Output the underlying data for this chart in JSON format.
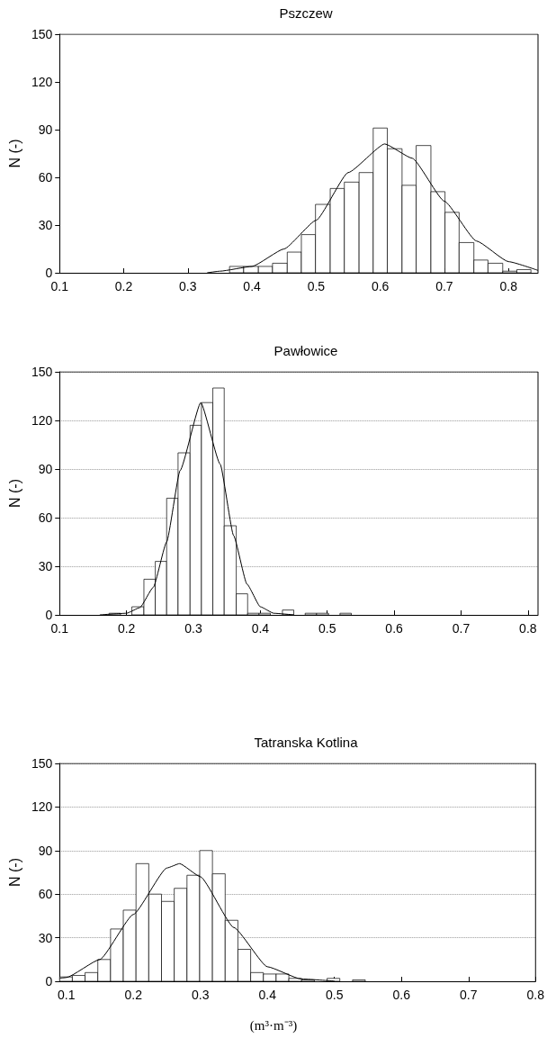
{
  "chart_data": [
    {
      "type": "histogram",
      "title": "Pszczew",
      "ylabel": "N (-)",
      "xlim": [
        0.1,
        0.846
      ],
      "xticks": [
        0.1,
        0.2,
        0.3,
        0.4,
        0.5,
        0.6,
        0.7,
        0.8
      ],
      "ylim": [
        0,
        150
      ],
      "yticks": [
        0,
        30,
        60,
        90,
        120,
        150
      ],
      "grid": false,
      "series": [
        {
          "type": "histogram",
          "color": "#ffffff",
          "bins": [
            0.365,
            0.387,
            0.41,
            0.432,
            0.455,
            0.477,
            0.499,
            0.522,
            0.544,
            0.567,
            0.589,
            0.611,
            0.634,
            0.656,
            0.679,
            0.701,
            0.723,
            0.746,
            0.768,
            0.791,
            0.813,
            0.835
          ],
          "values": [
            4,
            4,
            4,
            6,
            13,
            24,
            43,
            53,
            57,
            63,
            91,
            78,
            55,
            80,
            51,
            38,
            19,
            8,
            6,
            1,
            2
          ]
        },
        {
          "type": "line",
          "color": "#000000",
          "x": [
            0.33,
            0.35,
            0.4,
            0.45,
            0.5,
            0.55,
            0.607,
            0.65,
            0.7,
            0.75,
            0.8,
            0.846
          ],
          "values": [
            0,
            1,
            4,
            15,
            33,
            63,
            81,
            72,
            45,
            20,
            7,
            1.5
          ]
        }
      ]
    },
    {
      "type": "histogram",
      "title": "Pawłowice",
      "ylabel": "N (-)",
      "xlim": [
        0.1,
        0.815
      ],
      "xticks": [
        0.1,
        0.2,
        0.3,
        0.4,
        0.5,
        0.6,
        0.7,
        0.8
      ],
      "ylim": [
        0,
        150
      ],
      "yticks": [
        0,
        30,
        60,
        90,
        120,
        150
      ],
      "grid": "y",
      "series": [
        {
          "type": "histogram",
          "color": "#ffffff",
          "bins": [
            0.174,
            0.191,
            0.208,
            0.226,
            0.243,
            0.26,
            0.277,
            0.295,
            0.312,
            0.329,
            0.346,
            0.364,
            0.381,
            0.398,
            0.415,
            0.433,
            0.45,
            0.467,
            0.484,
            0.502,
            0.519,
            0.536
          ],
          "values": [
            1,
            0,
            5,
            22,
            33,
            72,
            100,
            117,
            131,
            140,
            55,
            13,
            1,
            1,
            0,
            3,
            0,
            1,
            1,
            0,
            1
          ]
        },
        {
          "type": "line",
          "color": "#000000",
          "x": [
            0.16,
            0.2,
            0.22,
            0.24,
            0.26,
            0.28,
            0.311,
            0.34,
            0.36,
            0.38,
            0.4,
            0.42,
            0.45
          ],
          "values": [
            0,
            1,
            4.5,
            17,
            45,
            89,
            131,
            93,
            49,
            19,
            5,
            1,
            0
          ]
        }
      ]
    },
    {
      "type": "histogram",
      "title": "Tatranska Kotlina",
      "ylabel": "N (-)",
      "xlabel": "(m³·m⁻³)",
      "xlim": [
        0.09,
        0.8
      ],
      "xticks": [
        0.1,
        0.2,
        0.3,
        0.4,
        0.5,
        0.6,
        0.7,
        0.8
      ],
      "ylim": [
        0,
        150
      ],
      "yticks": [
        0,
        30,
        60,
        90,
        120,
        150
      ],
      "grid": "y",
      "series": [
        {
          "type": "histogram",
          "color": "#ffffff",
          "bins": [
            0.09,
            0.109,
            0.128,
            0.147,
            0.166,
            0.185,
            0.204,
            0.223,
            0.242,
            0.261,
            0.28,
            0.299,
            0.318,
            0.337,
            0.356,
            0.375,
            0.394,
            0.413,
            0.432,
            0.451,
            0.47,
            0.489,
            0.508,
            0.527,
            0.546
          ],
          "values": [
            3,
            4,
            6,
            15,
            36,
            49,
            81,
            60,
            55,
            64,
            73,
            90,
            74,
            42,
            22,
            6,
            5,
            5,
            2,
            1,
            0,
            2,
            0,
            1
          ]
        },
        {
          "type": "line",
          "color": "#000000",
          "x": [
            0.09,
            0.1,
            0.15,
            0.2,
            0.25,
            0.269,
            0.3,
            0.35,
            0.4,
            0.45,
            0.5
          ],
          "values": [
            2,
            2.6,
            15,
            46,
            78,
            81,
            72,
            37,
            10,
            1.6,
            0.1
          ]
        }
      ]
    }
  ]
}
